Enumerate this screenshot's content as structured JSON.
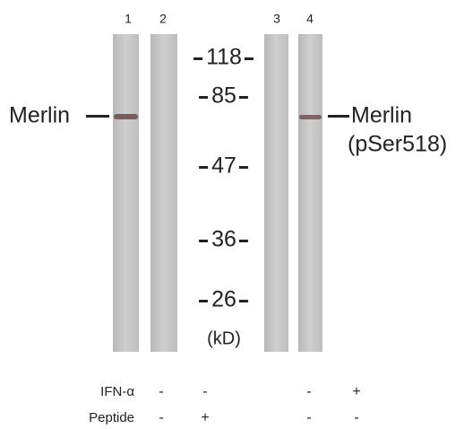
{
  "lanes": [
    {
      "number": "1"
    },
    {
      "number": "2"
    },
    {
      "number": "3"
    },
    {
      "number": "4"
    }
  ],
  "markers": [
    {
      "label": "118"
    },
    {
      "label": "85"
    },
    {
      "label": "47"
    },
    {
      "label": "36"
    },
    {
      "label": "26"
    }
  ],
  "marker_unit": "(kD)",
  "left_label": "Merlin",
  "right_label": {
    "name": "Merlin",
    "modification": "(pSer518)"
  },
  "treatments": [
    {
      "name": "IFN-α",
      "values": [
        "-",
        "-",
        "-",
        "+"
      ]
    },
    {
      "name": "Peptide",
      "values": [
        "-",
        "+",
        "-",
        "-"
      ]
    }
  ]
}
